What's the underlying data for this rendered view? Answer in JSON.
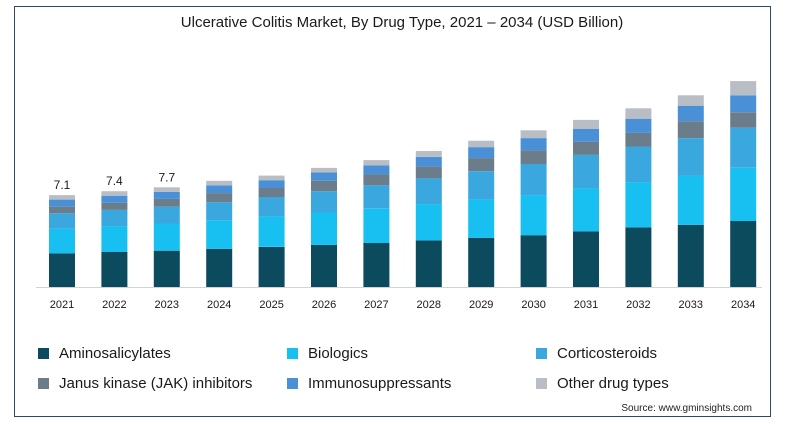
{
  "chart_data": {
    "type": "bar",
    "stacked": true,
    "title": "Ulcerative Colitis Market, By Drug Type, 2021 – 2034 (USD Billion)",
    "xlabel": "",
    "ylabel": "",
    "categories": [
      "2021",
      "2022",
      "2023",
      "2024",
      "2025",
      "2026",
      "2027",
      "2028",
      "2029",
      "2030",
      "2031",
      "2032",
      "2033",
      "2034"
    ],
    "totals": [
      7.1,
      7.4,
      7.7,
      8.2,
      8.6,
      9.2,
      9.8,
      10.5,
      11.3,
      12.1,
      12.9,
      13.8,
      14.8,
      15.9
    ],
    "total_labels": [
      "7.1",
      "7.4",
      "7.7"
    ],
    "series": [
      {
        "name": "Aminosalicylates",
        "color": "#0c4a5e",
        "values": [
          2.6,
          2.7,
          2.8,
          2.95,
          3.1,
          3.25,
          3.4,
          3.6,
          3.8,
          4.0,
          4.3,
          4.6,
          4.8,
          5.1
        ]
      },
      {
        "name": "Biologics",
        "color": "#17c0f0",
        "values": [
          1.9,
          2.0,
          2.1,
          2.2,
          2.35,
          2.5,
          2.65,
          2.8,
          2.95,
          3.1,
          3.3,
          3.5,
          3.8,
          4.1
        ]
      },
      {
        "name": "Corticosteroids",
        "color": "#3aa8de",
        "values": [
          1.2,
          1.25,
          1.3,
          1.4,
          1.5,
          1.65,
          1.8,
          2.0,
          2.2,
          2.4,
          2.6,
          2.75,
          2.9,
          3.1
        ]
      },
      {
        "name": "Janus kinase (JAK) inhibitors",
        "color": "#6b7c8a",
        "values": [
          0.5,
          0.55,
          0.6,
          0.7,
          0.7,
          0.8,
          0.85,
          0.9,
          1.0,
          1.05,
          1.0,
          1.05,
          1.3,
          1.2
        ]
      },
      {
        "name": "Immunosuppressants",
        "color": "#4a90d6",
        "values": [
          0.55,
          0.55,
          0.55,
          0.6,
          0.6,
          0.65,
          0.7,
          0.75,
          0.85,
          0.95,
          1.0,
          1.1,
          1.2,
          1.3
        ]
      },
      {
        "name": "Other drug types",
        "color": "#b8bec4",
        "values": [
          0.35,
          0.35,
          0.35,
          0.35,
          0.35,
          0.35,
          0.4,
          0.45,
          0.5,
          0.6,
          0.7,
          0.8,
          0.8,
          1.1
        ]
      }
    ],
    "ylim": [
      0,
      16.5
    ],
    "grid": false,
    "legend_position": "bottom"
  },
  "source": "Source: www.gminsights.com"
}
